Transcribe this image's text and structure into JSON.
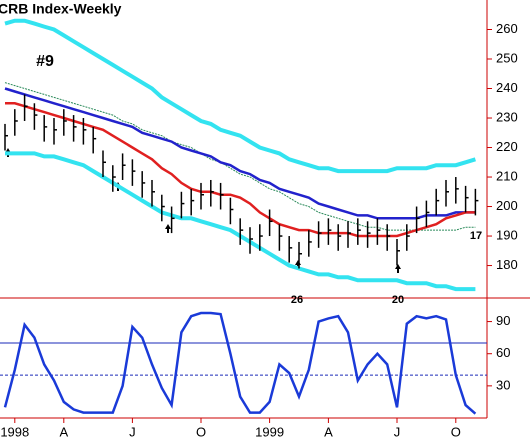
{
  "chart_data": [
    {
      "type": "ohlc",
      "title": "CRB Index-Weekly",
      "high": [
        228,
        233,
        238,
        235,
        231,
        230,
        233,
        231,
        230,
        227,
        219,
        214,
        218,
        216,
        212,
        209,
        204,
        200,
        205,
        206,
        208,
        209,
        208,
        203,
        196,
        193,
        194,
        199,
        194,
        190,
        188,
        192,
        195,
        196,
        194,
        195,
        196,
        195,
        196,
        194,
        189,
        194,
        200,
        202,
        206,
        209,
        210,
        207,
        206
      ],
      "low": [
        219,
        224,
        229,
        226,
        222,
        221,
        224,
        222,
        221,
        218,
        210,
        205,
        209,
        207,
        203,
        200,
        195,
        191,
        196,
        197,
        199,
        200,
        199,
        194,
        187,
        184,
        185,
        190,
        185,
        181,
        179,
        183,
        186,
        187,
        185,
        186,
        187,
        186,
        187,
        185,
        180,
        185,
        191,
        193,
        197,
        200,
        201,
        198,
        197
      ],
      "close": [
        224,
        229,
        234,
        231,
        227,
        226,
        229,
        227,
        226,
        223,
        215,
        210,
        214,
        212,
        208,
        205,
        200,
        196,
        201,
        202,
        204,
        205,
        204,
        199,
        192,
        189,
        190,
        195,
        190,
        186,
        184,
        188,
        191,
        192,
        190,
        191,
        192,
        191,
        192,
        190,
        185,
        190,
        196,
        198,
        202,
        205,
        206,
        203,
        202
      ],
      "bar_color": "#000000",
      "series": [
        {
          "color": "#33e3f0",
          "values": [
            262,
            263,
            263,
            262,
            261,
            260,
            258,
            256,
            254,
            252,
            250,
            248,
            246,
            244,
            242,
            240,
            237,
            235,
            233,
            231,
            229,
            228,
            226,
            225,
            224,
            222,
            220,
            219,
            218,
            216,
            215,
            214,
            213,
            213,
            212,
            212,
            212,
            212,
            212,
            212,
            213,
            213,
            213,
            213,
            214,
            214,
            214,
            215,
            216
          ]
        },
        {
          "color": "#33e3f0",
          "values": [
            218,
            218,
            218,
            218,
            217,
            217,
            216,
            215,
            214,
            212,
            210,
            208,
            206,
            204,
            202,
            200,
            198,
            197,
            196,
            196,
            195,
            194,
            193,
            192,
            190,
            188,
            186,
            184,
            182,
            180,
            179,
            178,
            177,
            177,
            176,
            176,
            175,
            175,
            175,
            175,
            175,
            174,
            174,
            174,
            173,
            173,
            172,
            172,
            172
          ]
        },
        {
          "color": "#2a8a5a",
          "values": [
            242,
            241,
            240,
            239,
            238,
            237,
            236,
            235,
            234,
            233,
            232,
            231,
            229,
            228,
            226,
            225,
            224,
            222,
            221,
            220,
            218,
            216,
            215,
            213,
            211,
            210,
            208,
            206,
            205,
            203,
            201,
            200,
            198,
            197,
            196,
            195,
            194,
            193,
            193,
            192,
            192,
            192,
            192,
            192,
            192,
            192,
            192,
            193,
            193
          ]
        },
        {
          "color": "#2222cc",
          "values": [
            240,
            239,
            238,
            237,
            236,
            235,
            234,
            233,
            232,
            231,
            230,
            229,
            228,
            227,
            225,
            224,
            223,
            222,
            220,
            219,
            218,
            217,
            215,
            214,
            212,
            211,
            209,
            208,
            206,
            205,
            204,
            203,
            201,
            200,
            199,
            198,
            197,
            197,
            196,
            196,
            196,
            196,
            196,
            197,
            197,
            197,
            198,
            198,
            198
          ]
        },
        {
          "color": "#e02020",
          "values": [
            235,
            235,
            234,
            233,
            232,
            231,
            230,
            229,
            228,
            227,
            226,
            224,
            222,
            220,
            218,
            216,
            213,
            211,
            208,
            206,
            205,
            205,
            204,
            204,
            203,
            201,
            198,
            196,
            194,
            193,
            192,
            192,
            191,
            191,
            191,
            191,
            190,
            190,
            190,
            190,
            190,
            191,
            192,
            193,
            194,
            196,
            197,
            198,
            198
          ]
        }
      ],
      "ylim": [
        169,
        270
      ],
      "yticks": [
        180,
        190,
        200,
        210,
        220,
        230,
        240,
        250,
        260
      ],
      "annotations": [
        {
          "text": "#9",
          "color": "#e02020"
        },
        {
          "text": "26",
          "color": "#000000"
        },
        {
          "text": "20",
          "color": "#000000"
        },
        {
          "text": "17",
          "color": "#000000"
        }
      ]
    },
    {
      "type": "line",
      "categories": [
        null,
        "1998",
        null,
        null,
        null,
        null,
        "A",
        null,
        null,
        null,
        null,
        null,
        null,
        "J",
        null,
        null,
        null,
        null,
        null,
        null,
        "O",
        null,
        null,
        null,
        null,
        null,
        null,
        "1999",
        null,
        null,
        null,
        null,
        null,
        "A",
        null,
        null,
        null,
        null,
        null,
        null,
        "J",
        null,
        null,
        null,
        null,
        null,
        "O",
        null,
        null
      ],
      "series": [
        {
          "color": "#1a3ad8",
          "values": [
            10,
            45,
            87,
            75,
            50,
            35,
            15,
            8,
            5,
            5,
            5,
            5,
            30,
            85,
            75,
            50,
            28,
            12,
            80,
            95,
            98,
            98,
            97,
            60,
            20,
            5,
            5,
            15,
            50,
            42,
            20,
            45,
            90,
            93,
            95,
            80,
            35,
            50,
            60,
            50,
            10,
            88,
            95,
            93,
            95,
            92,
            40,
            12,
            4
          ]
        }
      ],
      "reference_lines": [
        70,
        40
      ],
      "reference_color": "#1a2ab8",
      "ylim": [
        0,
        112
      ],
      "yticks": [
        30,
        60,
        90
      ]
    }
  ]
}
